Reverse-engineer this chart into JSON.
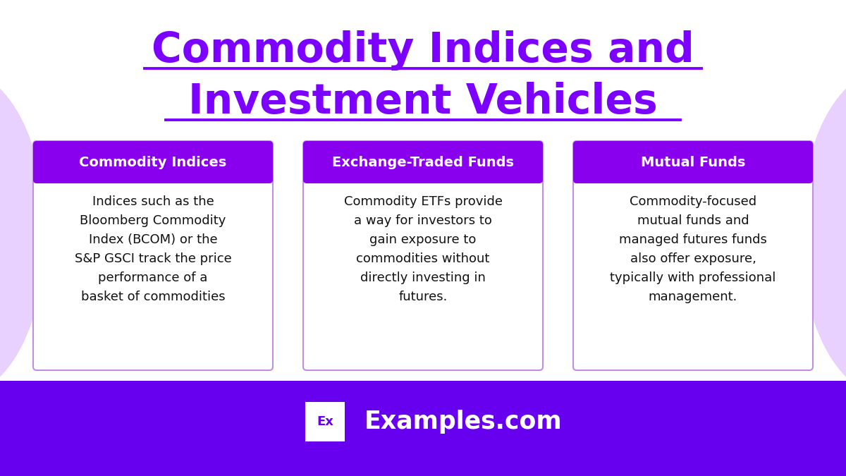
{
  "title_line1": "Commodity Indices and",
  "title_line2": "Investment Vehicles",
  "title_color": "#7B00FF",
  "bg_color": "#FFFFFF",
  "footer_bg_color": "#6600EE",
  "sidebar_color": "#E8D0FF",
  "card_header_color": "#8800EE",
  "card_border_color": "#C090E0",
  "card_bg_color": "#FFFFFF",
  "cards": [
    {
      "header": "Commodity Indices",
      "body": "Indices such as the\nBloomberg Commodity\nIndex (BCOM) or the\nS&P GSCI track the price\nperformance of a\nbasket of commodities"
    },
    {
      "header": "Exchange-Traded Funds",
      "body": "Commodity ETFs provide\na way for investors to\ngain exposure to\ncommodities without\ndirectly investing in\nfutures."
    },
    {
      "header": "Mutual Funds",
      "body": "Commodity-focused\nmutual funds and\nmanaged futures funds\nalso offer exposure,\ntypically with professional\nmanagement."
    }
  ],
  "footer_logo_text": "Ex",
  "footer_text": "Examples.com",
  "footer_logo_bg": "#FFFFFF",
  "footer_logo_color": "#6600EE",
  "footer_text_color": "#FFFFFF",
  "title_fontsize": 42,
  "header_fontsize": 14,
  "body_fontsize": 13
}
